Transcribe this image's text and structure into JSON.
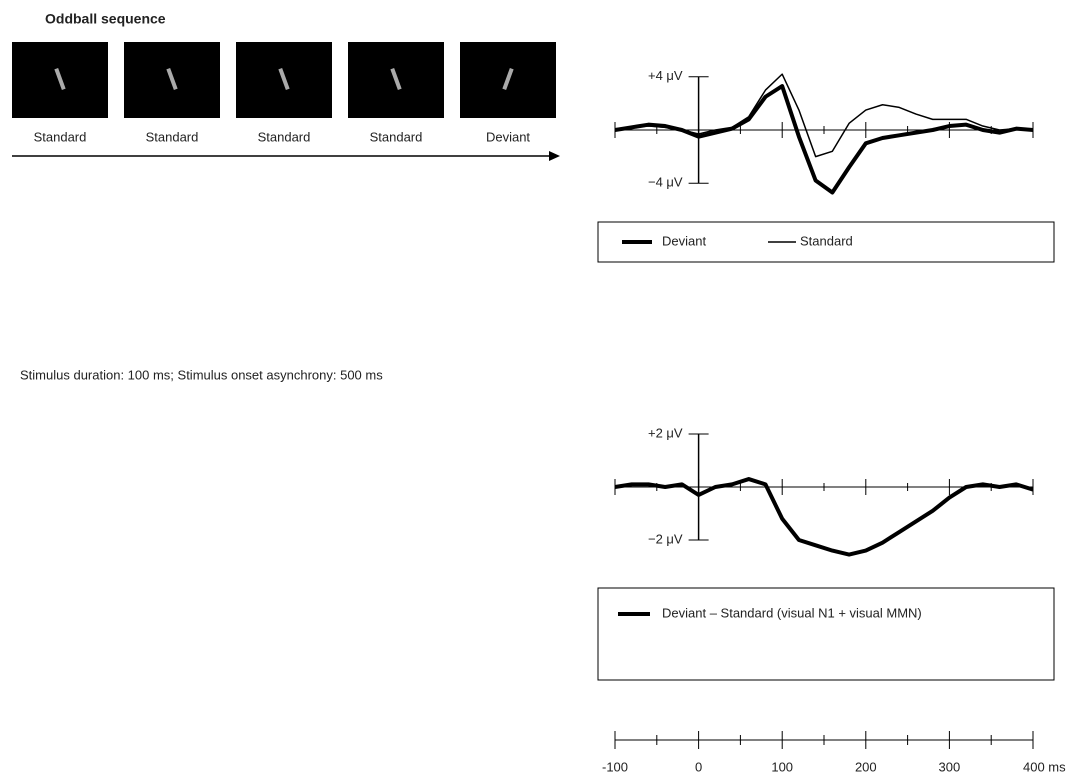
{
  "sequence": {
    "title": "Oddball sequence",
    "labels": [
      "Standard",
      "Standard",
      "Standard",
      "Standard",
      "Deviant"
    ]
  },
  "note": "Stimulus duration: 100 ms; Stimulus onset asynchrony: 500 ms",
  "chart_data": [
    {
      "type": "line",
      "x": [
        -100,
        -80,
        -60,
        -40,
        -20,
        0,
        20,
        40,
        60,
        80,
        100,
        120,
        140,
        160,
        180,
        200,
        220,
        240,
        260,
        280,
        300,
        320,
        340,
        360,
        380,
        400
      ],
      "xlim": [
        -100,
        400
      ],
      "xticks": [
        -100,
        0,
        100,
        200,
        300,
        400
      ],
      "xminorticks": [
        -50,
        50,
        150,
        250,
        350
      ],
      "ylim": [
        -5,
        5
      ],
      "yticks": [
        {
          "value": 4,
          "label": "+4 μV"
        },
        {
          "value": -4,
          "label": "−4 μV"
        }
      ],
      "series": [
        {
          "name": "Deviant",
          "color": "#000000",
          "linewidth": 4,
          "values": [
            0,
            0.2,
            0.4,
            0.3,
            0,
            -0.5,
            -0.2,
            0.1,
            0.8,
            2.5,
            3.3,
            -0.5,
            -3.8,
            -4.7,
            -2.8,
            -1.0,
            -0.6,
            -0.4,
            -0.2,
            0,
            0.3,
            0.4,
            0,
            -0.2,
            0.1,
            0
          ]
        },
        {
          "name": "Standard",
          "color": "#000000",
          "linewidth": 1.5,
          "values": [
            0,
            0.2,
            0.3,
            0.2,
            0,
            -0.3,
            0,
            0.2,
            1.0,
            3.0,
            4.2,
            1.5,
            -2.0,
            -1.6,
            0.5,
            1.5,
            1.9,
            1.7,
            1.2,
            0.8,
            0.8,
            0.8,
            0.3,
            0,
            0.1,
            0
          ]
        }
      ]
    },
    {
      "type": "line",
      "x": [
        -100,
        -80,
        -60,
        -40,
        -20,
        0,
        20,
        40,
        60,
        80,
        100,
        120,
        140,
        160,
        180,
        200,
        220,
        240,
        260,
        280,
        300,
        320,
        340,
        360,
        380,
        400
      ],
      "xlim": [
        -100,
        400
      ],
      "xticks": [
        -100,
        0,
        100,
        200,
        300,
        {
          "value": 400,
          "label": "400 ms"
        }
      ],
      "xminorticks": [
        -50,
        50,
        150,
        250,
        350
      ],
      "ylim": [
        -3,
        3
      ],
      "yticks": [
        {
          "value": 2,
          "label": "+2 μV"
        },
        {
          "value": -2,
          "label": "−2 μV"
        }
      ],
      "series": [
        {
          "name": "Deviant – Standard (visual N1 + visual MMN)",
          "color": "#000000",
          "linewidth": 4,
          "values": [
            0,
            0.1,
            0.1,
            0,
            0.1,
            -0.3,
            0,
            0.1,
            0.3,
            0.1,
            -1.2,
            -2.0,
            -2.2,
            -2.4,
            -2.55,
            -2.4,
            -2.1,
            -1.7,
            -1.3,
            -0.9,
            -0.4,
            0,
            0.1,
            0,
            0.1,
            -0.1
          ]
        }
      ]
    }
  ]
}
